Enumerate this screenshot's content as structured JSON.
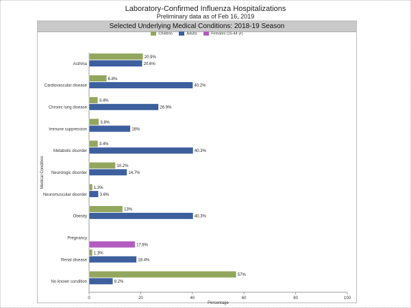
{
  "title": "Laboratory-Confirmed Influenza Hospitalizations",
  "subtitle": "Preliminary data as of Feb 16, 2019",
  "chart_data": {
    "type": "bar",
    "orientation": "horizontal",
    "title": "Selected Underlying Medical Conditions: 2018-19 Season",
    "xlabel": "Percentage",
    "ylabel": "Medical Condition",
    "xlim": [
      0,
      100
    ],
    "xticks": [
      0,
      20,
      40,
      60,
      80,
      100
    ],
    "grid": false,
    "legend_position": "top",
    "categories": [
      "Asthma",
      "Cardiovascular disease",
      "Chronic lung disease",
      "Immune suppression",
      "Metabolic disorder",
      "Neurologic disorder",
      "Neuromuscular disorder",
      "Obesity",
      "Pregnancy",
      "Renal disease",
      "No known condition"
    ],
    "series": [
      {
        "name": "Children",
        "color": "#93a65e",
        "values": [
          20.9,
          6.8,
          3.4,
          3.8,
          3.4,
          10.2,
          1.3,
          13,
          null,
          1.3,
          57
        ],
        "labels": [
          "20.9%",
          "6.8%",
          "3.4%",
          "3.8%",
          "3.4%",
          "10.2%",
          "1.3%",
          "13%",
          null,
          "1.3%",
          "57%"
        ]
      },
      {
        "name": "Adults",
        "color": "#3d5f9e",
        "values": [
          20.6,
          40.2,
          26.9,
          16,
          40.3,
          14.7,
          3.6,
          40.3,
          null,
          18.4,
          9.2
        ],
        "labels": [
          "20.6%",
          "40.2%",
          "26.9%",
          "16%",
          "40.3%",
          "14.7%",
          "3.6%",
          "40.3%",
          null,
          "18.4%",
          "9.2%"
        ]
      },
      {
        "name": "Females (15-44 yr)",
        "color": "#b25cc0",
        "values": [
          null,
          null,
          null,
          null,
          null,
          null,
          null,
          null,
          17.8,
          null,
          null
        ],
        "labels": [
          null,
          null,
          null,
          null,
          null,
          null,
          null,
          null,
          "17.8%",
          null,
          null
        ]
      }
    ]
  }
}
